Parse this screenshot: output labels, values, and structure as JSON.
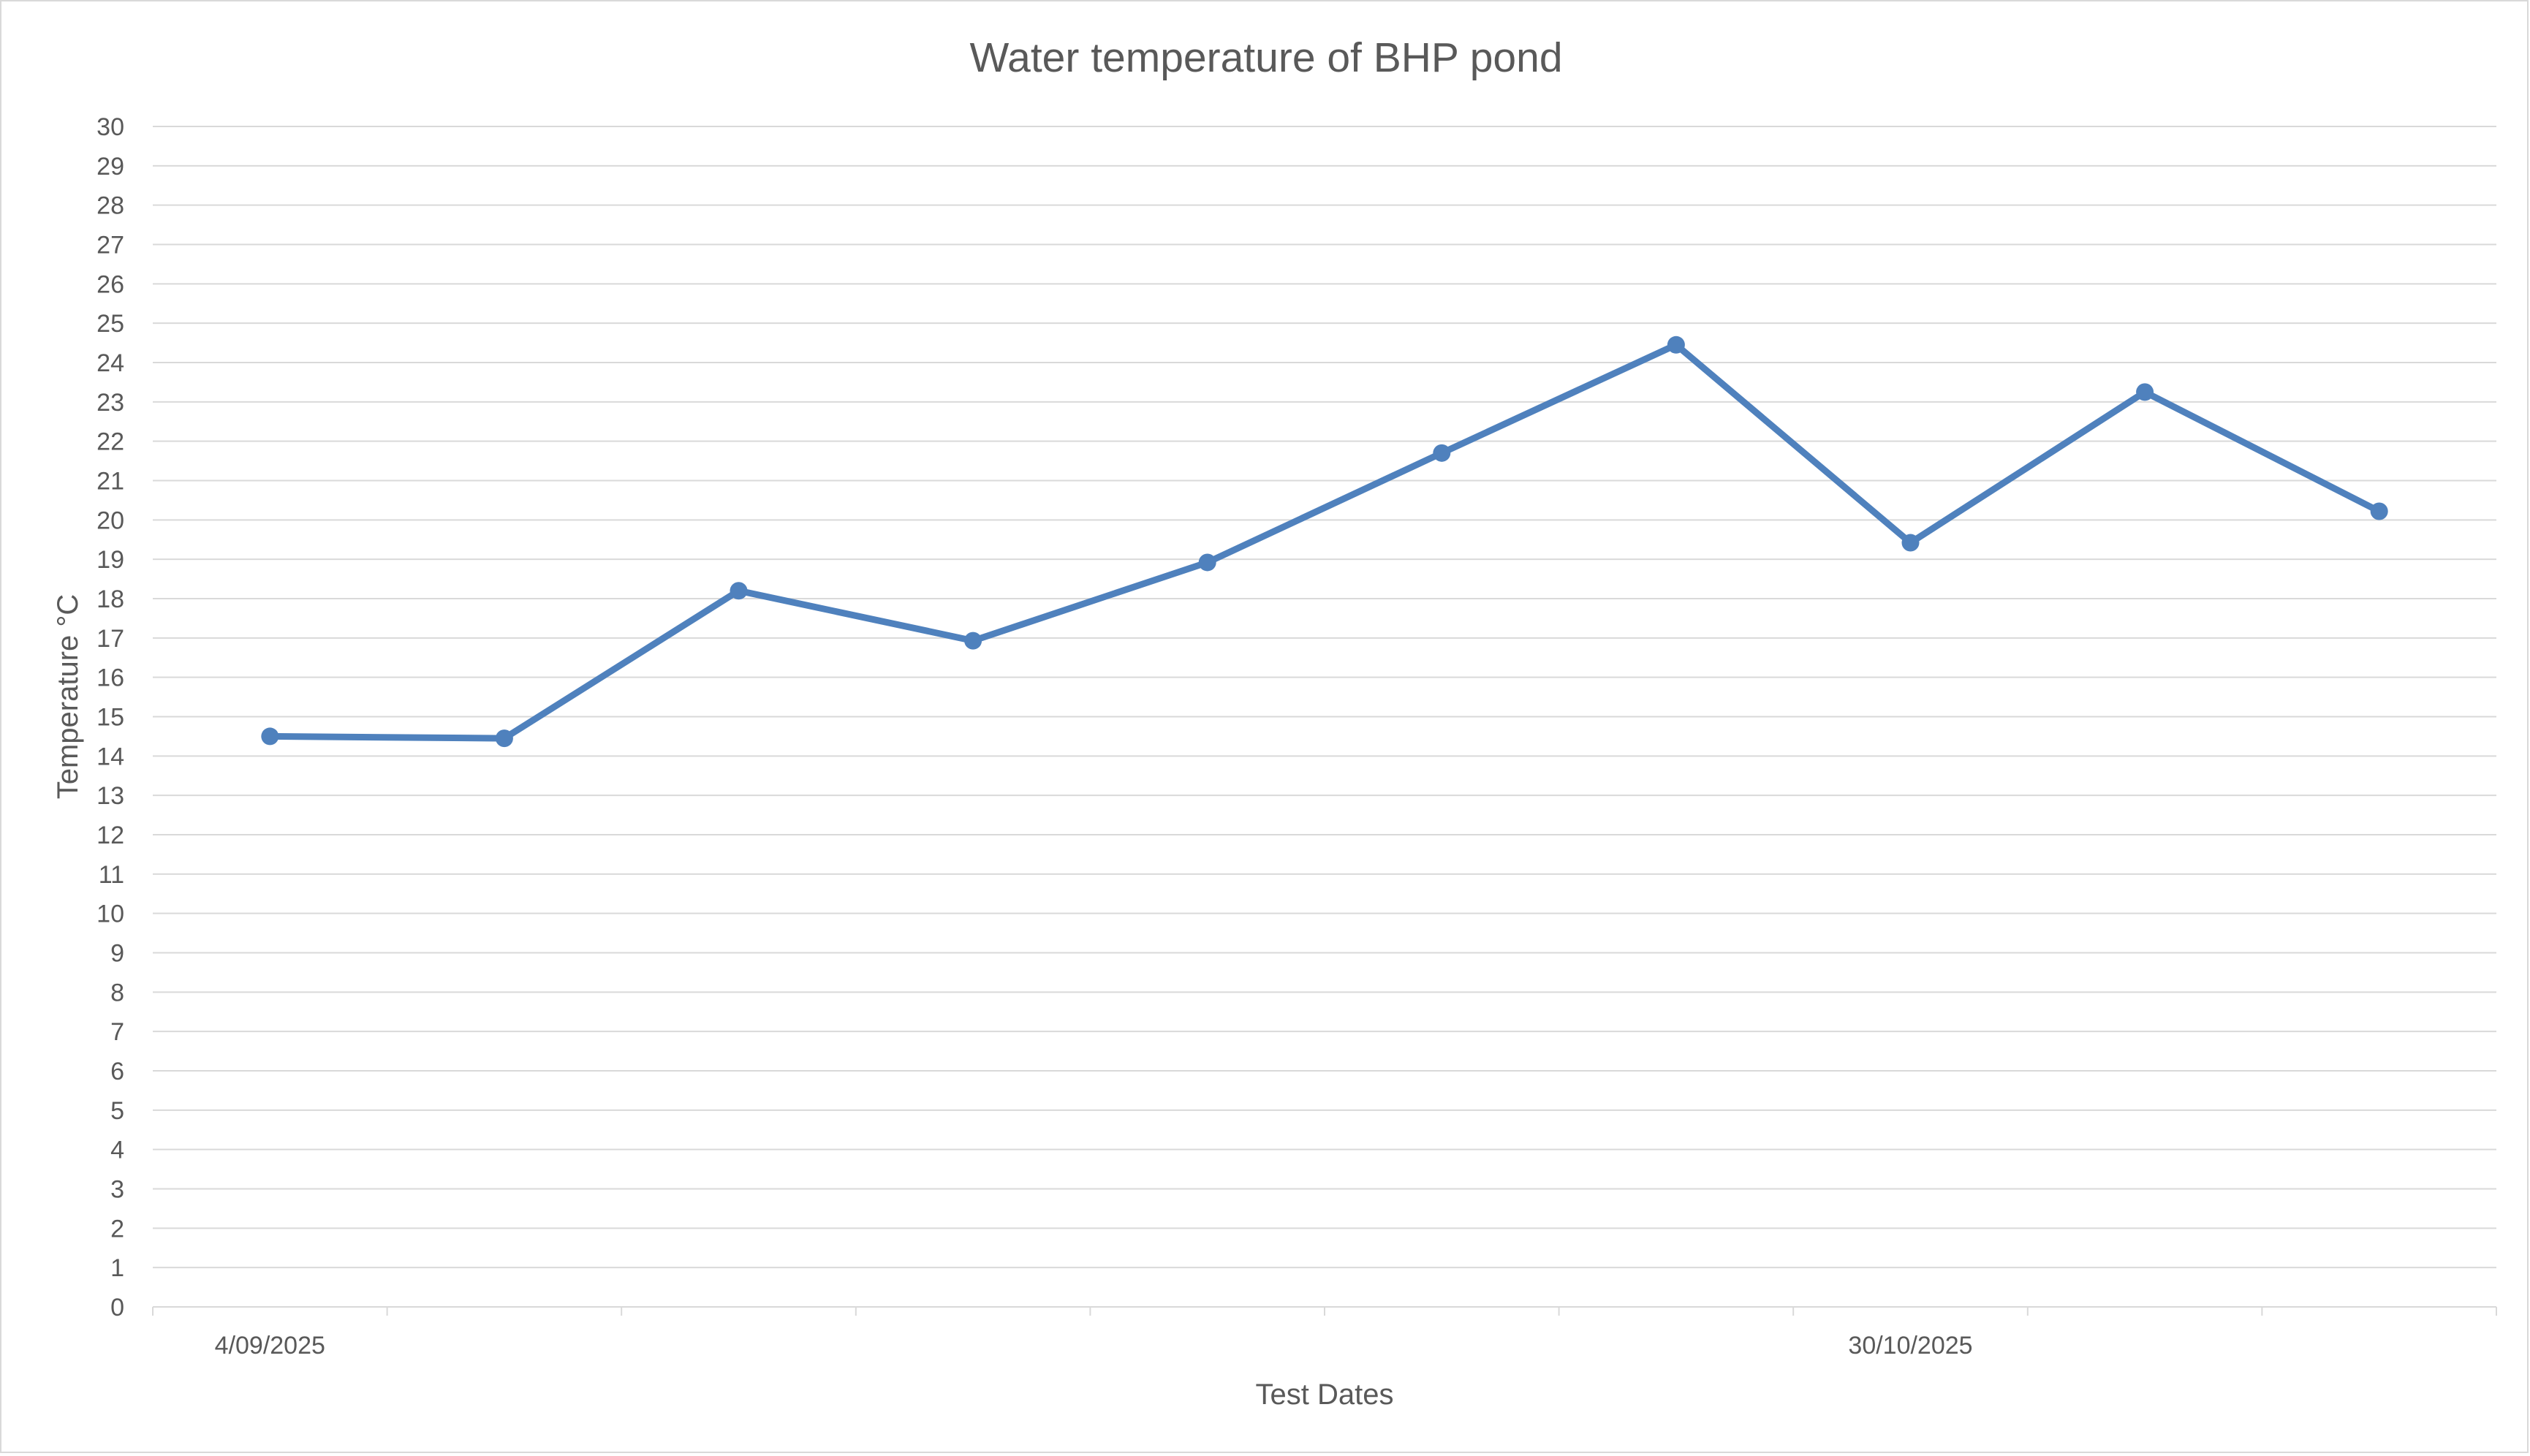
{
  "chart_data": {
    "type": "line",
    "title": "Water temperature of BHP pond",
    "xlabel": "Test Dates",
    "ylabel": "Temperature °C",
    "ylim": [
      0,
      30
    ],
    "ytick_step": 1,
    "grid": true,
    "legend": "none",
    "x_tick_labels": [
      {
        "index": 0,
        "label": "4/09/2025"
      },
      {
        "index": 7,
        "label": "30/10/2025"
      }
    ],
    "series": [
      {
        "name": "Water temperature",
        "color": "#4f81bd",
        "values": [
          14.5,
          14.45,
          18.2,
          16.93,
          18.92,
          21.7,
          24.45,
          19.42,
          23.25,
          20.22
        ]
      }
    ]
  }
}
